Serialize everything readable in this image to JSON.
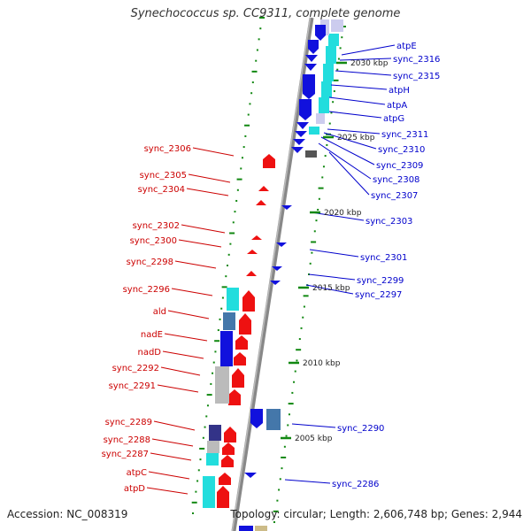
{
  "title": "Synechococcus sp. CC9311, complete genome",
  "footer": {
    "accession": "Accession: NC_008319",
    "topology": "Topology: circular; Length: 2,606,748 bp; Genes: 2,944"
  },
  "colors": {
    "forward": "#ee1111",
    "reverse": "#1111dd",
    "forward_label": "#cc0000",
    "reverse_label": "#0000cc",
    "backbone": "#888888",
    "tick": "#118811",
    "cyan_box": "#22dddd",
    "steel_box": "#4477aa",
    "gray_box": "#bbbbbb",
    "navy_box": "#333388"
  },
  "scale_labels": [
    "2030 kbp",
    "2025 kbp",
    "2020 kbp",
    "2015 kbp",
    "2010 kbp",
    "2005 kbp"
  ],
  "forward_genes": [
    "sync_2306",
    "sync_2305",
    "sync_2304",
    "sync_2302",
    "sync_2300",
    "sync_2298",
    "sync_2296",
    "ald",
    "nadE",
    "nadD",
    "sync_2292",
    "sync_2291",
    "sync_2289",
    "sync_2288",
    "sync_2287",
    "atpC",
    "atpD"
  ],
  "reverse_genes": [
    "atpE",
    "sync_2316",
    "sync_2315",
    "atpH",
    "atpA",
    "atpG",
    "sync_2311",
    "sync_2310",
    "sync_2309",
    "sync_2308",
    "sync_2307",
    "sync_2303",
    "sync_2301",
    "sync_2299",
    "sync_2297",
    "sync_2290",
    "sync_2286"
  ]
}
